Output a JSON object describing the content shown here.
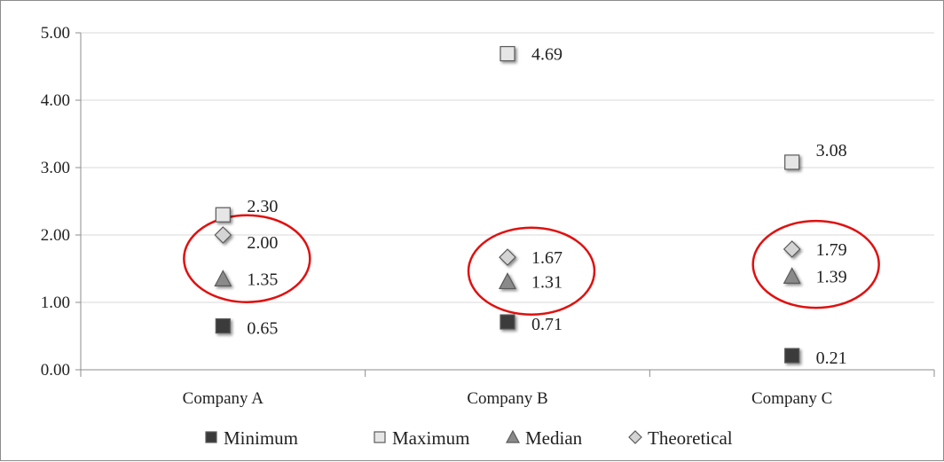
{
  "chart_data": {
    "type": "scatter",
    "categories": [
      "Company A",
      "Company B",
      "Company C"
    ],
    "y_ticks": [
      "0.00",
      "1.00",
      "2.00",
      "3.00",
      "4.00",
      "5.00"
    ],
    "ylim": [
      0,
      5
    ],
    "grid": true,
    "legend_position": "bottom",
    "series": [
      {
        "name": "Minimum",
        "marker": "square",
        "color": "#3a3a3a",
        "values": [
          0.65,
          0.71,
          0.21
        ],
        "labels": [
          "0.65",
          "0.71",
          "0.21"
        ]
      },
      {
        "name": "Maximum",
        "marker": "square",
        "color": "#e6e6e6",
        "values": [
          2.3,
          4.69,
          3.08
        ],
        "labels": [
          "2.30",
          "4.69",
          "3.08"
        ]
      },
      {
        "name": "Median",
        "marker": "triangle",
        "color": "#8a8a8a",
        "values": [
          1.35,
          1.31,
          1.39
        ],
        "labels": [
          "1.35",
          "1.31",
          "1.39"
        ]
      },
      {
        "name": "Theoretical",
        "marker": "diamond",
        "color": "#d4d4d4",
        "values": [
          2.0,
          1.67,
          1.79
        ],
        "labels": [
          "2.00",
          "1.67",
          "1.79"
        ]
      }
    ],
    "annotation_color": "#e01010"
  }
}
